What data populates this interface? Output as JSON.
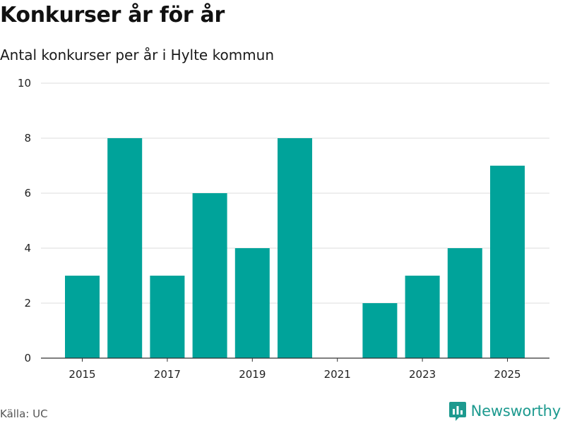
{
  "header": {
    "title": "Konkurser år för år",
    "subtitle": "Antal konkurser per år i Hylte kommun"
  },
  "footer": {
    "source": "Källa: UC",
    "brand": "Newsworthy"
  },
  "colors": {
    "bar": "#00a39a",
    "grid": "#dddddd",
    "axis": "#333333",
    "brand": "#1d9a8f"
  },
  "chart_data": {
    "type": "bar",
    "title": "Konkurser år för år",
    "subtitle": "Antal konkurser per år i Hylte kommun",
    "categories": [
      "2015",
      "2016",
      "2017",
      "2018",
      "2019",
      "2020",
      "2021",
      "2022",
      "2023",
      "2024",
      "2025"
    ],
    "values": [
      3,
      8,
      3,
      6,
      4,
      8,
      0,
      2,
      3,
      4,
      7
    ],
    "xticks": [
      "2015",
      "2017",
      "2019",
      "2021",
      "2023",
      "2025"
    ],
    "yticks": [
      0,
      2,
      4,
      6,
      8,
      10
    ],
    "ylim": [
      0,
      10
    ],
    "xlabel": "",
    "ylabel": "",
    "grid": true,
    "legend": "none"
  }
}
